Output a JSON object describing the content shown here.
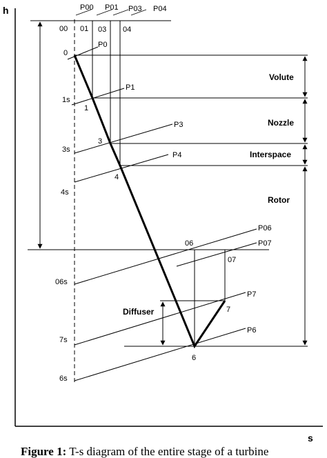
{
  "axes": {
    "y_label": "h",
    "x_label": "s"
  },
  "top_labels": {
    "pressure": [
      "P00",
      "P01",
      "P03",
      "P04"
    ],
    "states": [
      "00",
      "01",
      "03",
      "04"
    ]
  },
  "isobars": {
    "p0": "P0",
    "p1": "P1",
    "p3": "P3",
    "p4": "P4",
    "p06": "P06",
    "p07": "P07",
    "p7": "P7",
    "p6": "P6"
  },
  "points": {
    "s0": "0",
    "s1s": "1s",
    "s1": "1",
    "s3s": "3s",
    "s3": "3",
    "s4": "4",
    "s4s": "4s",
    "s06": "06",
    "s07": "07",
    "s06s": "06s",
    "s7s": "7s",
    "s7": "7",
    "s6": "6",
    "s6s": "6s"
  },
  "regions": {
    "volute": "Volute",
    "nozzle": "Nozzle",
    "interspace": "Interspace",
    "rotor": "Rotor",
    "diffuser": "Diffuser"
  },
  "caption": {
    "prefix": "Figure 1:",
    "text": " T-s diagram of the entire stage of a turbine"
  }
}
